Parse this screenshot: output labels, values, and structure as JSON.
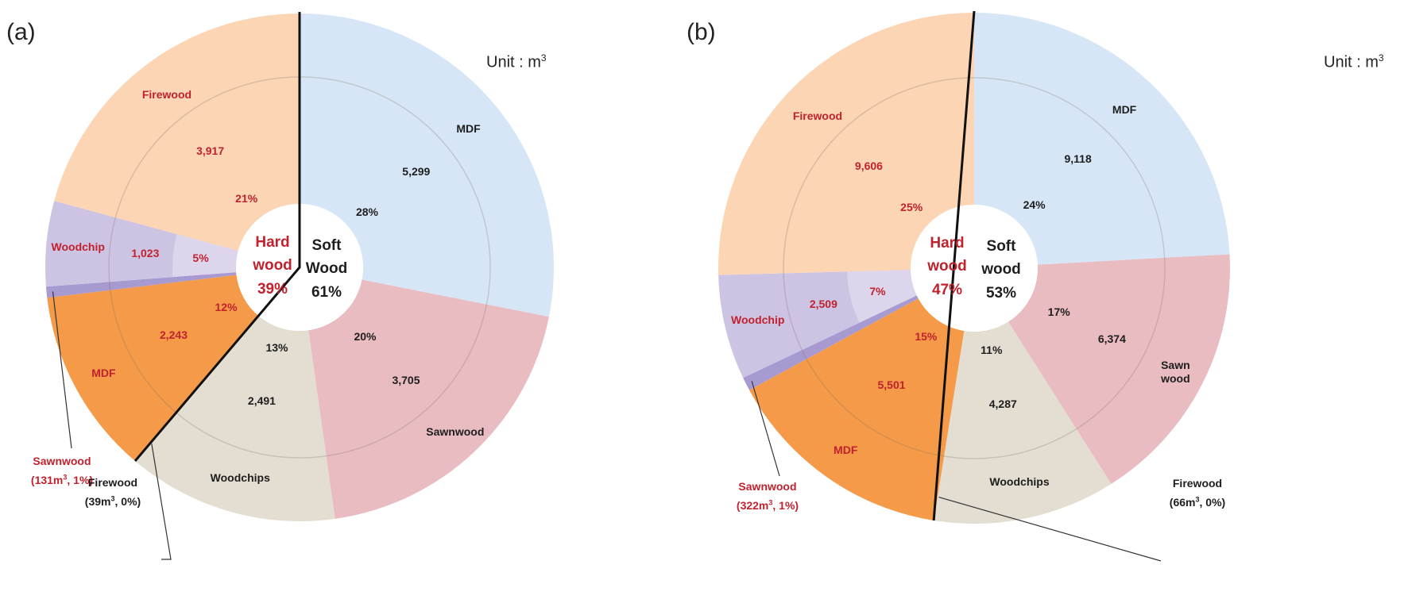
{
  "unit_label": "Unit : m",
  "unit_sup": "3",
  "colors": {
    "hw_firewood": "#fbd5b4",
    "hw_woodchip": "#cdc3e3",
    "hw_woodchip_inner": "#ddd5ec",
    "hw_sawnwood": "#a79ad1",
    "hw_mdf": "#f59a48",
    "sw_mdf": "#d6e6f6",
    "sw_sawnwood": "#e9bcc2",
    "sw_woodchips": "#e3ddd2",
    "sw_firewood": "#e3ddd2",
    "hard_text": "#c0222e",
    "soft_text": "#1e1e1e"
  },
  "panels": [
    {
      "label": "(a)",
      "center": {
        "hard_line1": "Hard",
        "hard_line2": "wood",
        "hard_pct": "39%",
        "soft_line1": "Soft",
        "soft_line2": "Wood",
        "soft_pct": "61%"
      },
      "callouts": {
        "hw_sawnwood": {
          "name": "Sawnwood",
          "detail": "(131m",
          "detail_sup": "3",
          "detail_tail": ", 1%)"
        },
        "sw_firewood": {
          "name": "Firewood",
          "detail": "(39m",
          "detail_sup": "3",
          "detail_tail": ", 0%)"
        }
      },
      "labels": {
        "sw_mdf": {
          "name": "MDF",
          "value": "5,299",
          "pct": "28%"
        },
        "sw_sawnwood": {
          "name": "Sawnwood",
          "value": "3,705",
          "pct": "20%"
        },
        "sw_woodchips": {
          "name": "Woodchips",
          "value": "2,491",
          "pct": "13%"
        },
        "hw_mdf": {
          "name": "MDF",
          "value": "2,243",
          "pct": "12%"
        },
        "hw_woodchip": {
          "name": "Woodchip",
          "value": "1,023",
          "pct": "5%"
        },
        "hw_firewood": {
          "name": "Firewood",
          "value": "3,917",
          "pct": "21%"
        }
      }
    },
    {
      "label": "(b)",
      "center": {
        "hard_line1": "Hard",
        "hard_line2": "wood",
        "hard_pct": "47%",
        "soft_line1": "Soft",
        "soft_line2": "wood",
        "soft_pct": "53%"
      },
      "callouts": {
        "hw_sawnwood": {
          "name": "Sawnwood",
          "detail": "(322m",
          "detail_sup": "3",
          "detail_tail": ", 1%)"
        },
        "sw_firewood": {
          "name": "Firewood",
          "detail": "(66m",
          "detail_sup": "3",
          "detail_tail": ", 0%)"
        }
      },
      "labels": {
        "sw_mdf": {
          "name": "MDF",
          "value": "9,118",
          "pct": "24%"
        },
        "sw_sawnwood": {
          "name": "Sawn\nwood",
          "value": "6,374",
          "pct": "17%"
        },
        "sw_woodchips": {
          "name": "Woodchips",
          "value": "4,287",
          "pct": "11%"
        },
        "hw_mdf": {
          "name": "MDF",
          "value": "5,501",
          "pct": "15%"
        },
        "hw_woodchip": {
          "name": "Woodchip",
          "value": "2,509",
          "pct": "7%"
        },
        "hw_firewood": {
          "name": "Firewood",
          "value": "9,606",
          "pct": "25%"
        }
      }
    }
  ],
  "chart_data": [
    {
      "type": "pie",
      "title": "(a)",
      "unit": "m3",
      "groups": [
        {
          "name": "Soft Wood",
          "pct": 61,
          "color": "#1e1e1e"
        },
        {
          "name": "Hard wood",
          "pct": 39,
          "color": "#c0222e"
        }
      ],
      "slices": [
        {
          "group": "Softwood",
          "name": "MDF",
          "value": 5299,
          "pct": 28
        },
        {
          "group": "Softwood",
          "name": "Sawnwood",
          "value": 3705,
          "pct": 20
        },
        {
          "group": "Softwood",
          "name": "Woodchips",
          "value": 2491,
          "pct": 13
        },
        {
          "group": "Softwood",
          "name": "Firewood",
          "value": 39,
          "pct": 0
        },
        {
          "group": "Hardwood",
          "name": "MDF",
          "value": 2243,
          "pct": 12
        },
        {
          "group": "Hardwood",
          "name": "Sawnwood",
          "value": 131,
          "pct": 1
        },
        {
          "group": "Hardwood",
          "name": "Woodchip",
          "value": 1023,
          "pct": 5
        },
        {
          "group": "Hardwood",
          "name": "Firewood",
          "value": 3917,
          "pct": 21
        }
      ]
    },
    {
      "type": "pie",
      "title": "(b)",
      "unit": "m3",
      "groups": [
        {
          "name": "Soft wood",
          "pct": 53,
          "color": "#1e1e1e"
        },
        {
          "name": "Hard wood",
          "pct": 47,
          "color": "#c0222e"
        }
      ],
      "slices": [
        {
          "group": "Softwood",
          "name": "MDF",
          "value": 9118,
          "pct": 24
        },
        {
          "group": "Softwood",
          "name": "Sawnwood",
          "value": 6374,
          "pct": 17
        },
        {
          "group": "Softwood",
          "name": "Woodchips",
          "value": 4287,
          "pct": 11
        },
        {
          "group": "Softwood",
          "name": "Firewood",
          "value": 66,
          "pct": 0
        },
        {
          "group": "Hardwood",
          "name": "MDF",
          "value": 5501,
          "pct": 15
        },
        {
          "group": "Hardwood",
          "name": "Sawnwood",
          "value": 322,
          "pct": 1
        },
        {
          "group": "Hardwood",
          "name": "Woodchip",
          "value": 2509,
          "pct": 7
        },
        {
          "group": "Hardwood",
          "name": "Firewood",
          "value": 9606,
          "pct": 25
        }
      ]
    }
  ]
}
